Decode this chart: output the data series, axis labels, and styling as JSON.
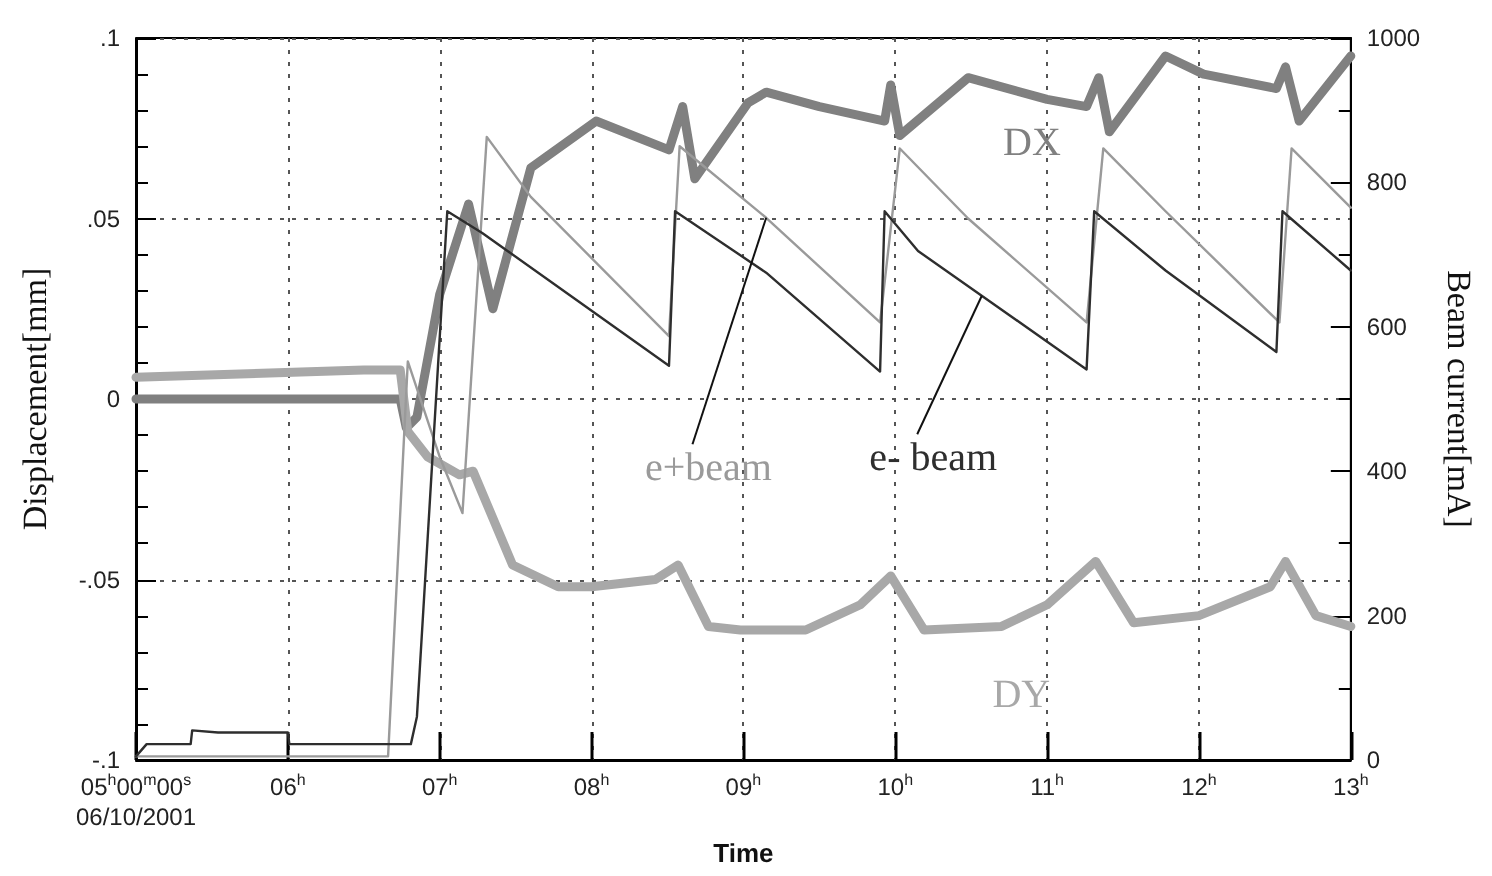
{
  "chart_data": {
    "type": "line",
    "xlabel": "Time",
    "ylabel": "Displacement[mm]",
    "y2label": "Beam current[mA]",
    "xlim": [
      5,
      13
    ],
    "xticks": [
      {
        "value": 5,
        "label": "05$^{h}$00$^{m}$00$^{s}$\n06/10/2001"
      },
      {
        "value": 6,
        "label": "06$^{h}$"
      },
      {
        "value": 7,
        "label": "07$^{h}$"
      },
      {
        "value": 8,
        "label": "08$^{h}$"
      },
      {
        "value": 9,
        "label": "09$^{h}$"
      },
      {
        "value": 10,
        "label": "10$^{h}$"
      },
      {
        "value": 11,
        "label": "11$^{h}$"
      },
      {
        "value": 12,
        "label": "12$^{h}$"
      },
      {
        "value": 13,
        "label": "13$^{h}$"
      }
    ],
    "ylim": [
      -0.1,
      0.1
    ],
    "yticks": [
      {
        "value": -0.1,
        "label": "-.1"
      },
      {
        "value": -0.09,
        "label": null
      },
      {
        "value": -0.08,
        "label": null
      },
      {
        "value": -0.07,
        "label": null
      },
      {
        "value": -0.06,
        "label": null
      },
      {
        "value": -0.05,
        "label": "-.05"
      },
      {
        "value": -0.04,
        "label": null
      },
      {
        "value": -0.03,
        "label": null
      },
      {
        "value": -0.02,
        "label": null
      },
      {
        "value": -0.01,
        "label": null
      },
      {
        "value": 0,
        "label": "0"
      },
      {
        "value": 0.01,
        "label": null
      },
      {
        "value": 0.02,
        "label": null
      },
      {
        "value": 0.03,
        "label": null
      },
      {
        "value": 0.04,
        "label": null
      },
      {
        "value": 0.05,
        "label": ".05"
      },
      {
        "value": 0.06,
        "label": null
      },
      {
        "value": 0.07,
        "label": null
      },
      {
        "value": 0.08,
        "label": null
      },
      {
        "value": 0.09,
        "label": null
      },
      {
        "value": 0.1,
        "label": ".1"
      }
    ],
    "y2lim": [
      0,
      1000
    ],
    "y2ticks": [
      0,
      {
        "value": 100,
        "label": null
      },
      200,
      {
        "value": 300,
        "label": null
      },
      400,
      {
        "value": 500,
        "label": null
      },
      600,
      {
        "value": 700,
        "label": null
      },
      800,
      {
        "value": 900,
        "label": null
      },
      1000
    ],
    "grid": true,
    "marker": "none",
    "line_style": "solid",
    "series": [
      {
        "name": "DX",
        "color": "#808080",
        "x": [
          5,
          6.74,
          6.78,
          6.85,
          7.0,
          7.19,
          7.35,
          7.6,
          8.03,
          8.51,
          8.6,
          8.68,
          9.03,
          9.15,
          9.5,
          9.93,
          9.97,
          10.03,
          10.48,
          11.0,
          11.26,
          11.34,
          11.41,
          11.78,
          12.03,
          12.51,
          12.57,
          12.66,
          13
        ],
        "values": [
          0,
          0,
          -0.008,
          -0.005,
          0.029,
          0.054,
          0.025,
          0.064,
          0.077,
          0.069,
          0.081,
          0.061,
          0.082,
          0.085,
          0.081,
          0.077,
          0.087,
          0.073,
          0.089,
          0.083,
          0.081,
          0.089,
          0.074,
          0.095,
          0.09,
          0.086,
          0.092,
          0.077,
          0.095
        ]
      },
      {
        "name": "DY",
        "color": "#a8a8a8",
        "x": [
          5,
          6.5,
          6.74,
          6.79,
          6.92,
          7.13,
          7.22,
          7.48,
          7.78,
          8.0,
          8.42,
          8.57,
          8.77,
          8.98,
          9.41,
          9.77,
          9.97,
          10.19,
          10.7,
          11.0,
          11.32,
          11.57,
          12.0,
          12.47,
          12.57,
          12.77,
          13
        ],
        "values": [
          0.006,
          0.008,
          0.008,
          -0.009,
          -0.016,
          -0.021,
          -0.02,
          -0.046,
          -0.052,
          -0.052,
          -0.05,
          -0.046,
          -0.063,
          -0.064,
          -0.064,
          -0.057,
          -0.049,
          -0.064,
          -0.063,
          -0.057,
          -0.045,
          -0.062,
          -0.06,
          -0.052,
          -0.045,
          -0.06,
          -0.063
        ]
      },
      {
        "name": "e+beam",
        "color": "#9a9a9a",
        "axis": "y2",
        "x": [
          5,
          6.66,
          6.79,
          7.0,
          7.15,
          7.31,
          7.6,
          8.51,
          8.58,
          9.15,
          9.9,
          10.03,
          10.48,
          11.26,
          11.37,
          11.78,
          12.53,
          12.61,
          13
        ],
        "values": [
          5,
          5,
          552,
          420,
          342,
          863,
          780,
          587,
          850,
          751,
          606,
          847,
          750,
          606,
          847,
          760,
          606,
          847,
          765
        ]
      },
      {
        "name": "e- beam",
        "color": "#2e2e2e",
        "axis": "y2",
        "x": [
          5,
          5.07,
          5.36,
          5.37,
          5.54,
          6.0,
          6.01,
          6.81,
          6.85,
          7.05,
          7.28,
          8.51,
          8.55,
          9.15,
          9.9,
          9.93,
          10.15,
          11.26,
          11.31,
          11.78,
          12.51,
          12.55,
          13
        ],
        "values": [
          5,
          22,
          22,
          41,
          38,
          38,
          22,
          22,
          60,
          760,
          730,
          546,
          760,
          675,
          538,
          760,
          705,
          541,
          760,
          678,
          565,
          760,
          678
        ]
      }
    ]
  }
}
